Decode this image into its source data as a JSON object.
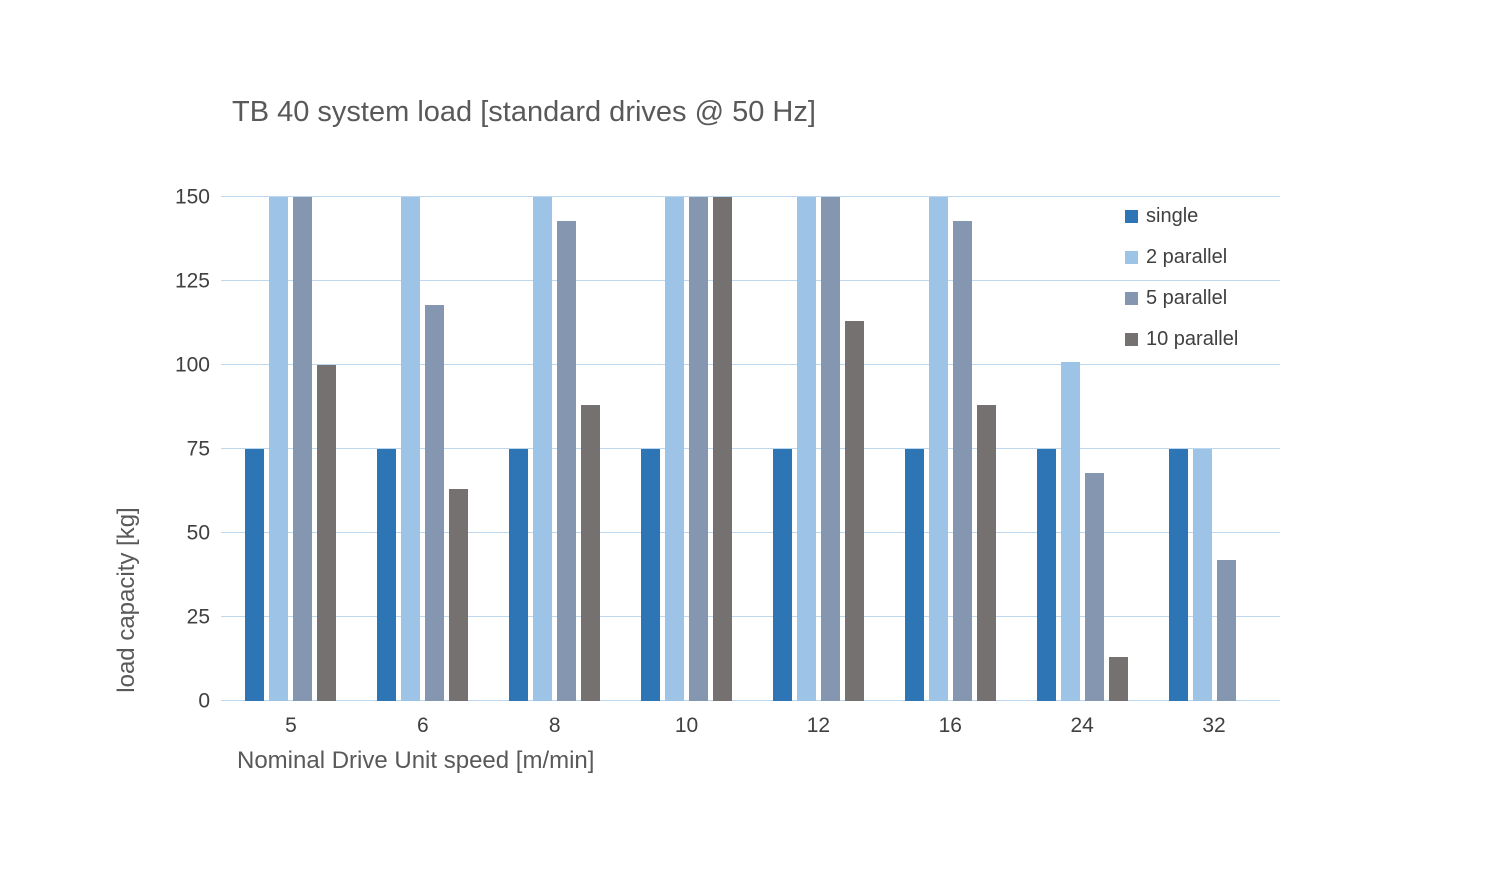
{
  "page": {
    "background": "#ffffff",
    "title_color": "#595959",
    "tick_label_color": "#404040",
    "gridline_color": "#BDD7EE"
  },
  "chart_data": {
    "type": "bar",
    "title": "TB 40 system load [standard drives @ 50 Hz]",
    "xlabel": "Nominal Drive Unit speed [m/min]",
    "ylabel": "load capacity [kg]",
    "categories": [
      "5",
      "6",
      "8",
      "10",
      "12",
      "16",
      "24",
      "32"
    ],
    "series": [
      {
        "name": "single",
        "color": "#2E75B6",
        "values": [
          75,
          75,
          75,
          75,
          75,
          75,
          75,
          75
        ]
      },
      {
        "name": "2 parallel",
        "color": "#9DC3E6",
        "values": [
          150,
          150,
          150,
          150,
          150,
          150,
          101,
          75
        ]
      },
      {
        "name": "5 parallel",
        "color": "#8496B0",
        "values": [
          150,
          118,
          143,
          150,
          150,
          143,
          68,
          42
        ]
      },
      {
        "name": "10 parallel",
        "color": "#767171",
        "values": [
          100,
          63,
          88,
          150,
          113,
          88,
          13,
          0
        ]
      }
    ],
    "ylim": [
      0,
      150
    ],
    "yticks": [
      150,
      125,
      100,
      75,
      50,
      25,
      0
    ],
    "grid": true,
    "legend_position": "top-right"
  }
}
